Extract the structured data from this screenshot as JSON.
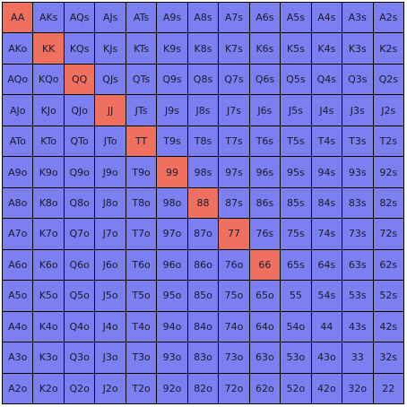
{
  "colors": {
    "default": "#7b7ff0",
    "highlight": "#f0705f"
  },
  "rows": [
    [
      "AA",
      "AKs",
      "AQs",
      "AJs",
      "ATs",
      "A9s",
      "A8s",
      "A7s",
      "A6s",
      "A5s",
      "A4s",
      "A3s",
      "A2s"
    ],
    [
      "AKo",
      "KK",
      "KQs",
      "KJs",
      "KTs",
      "K9s",
      "K8s",
      "K7s",
      "K6s",
      "K5s",
      "K4s",
      "K3s",
      "K2s"
    ],
    [
      "AQo",
      "KQo",
      "QQ",
      "QJs",
      "QTs",
      "Q9s",
      "Q8s",
      "Q7s",
      "Q6s",
      "Q5s",
      "Q4s",
      "Q3s",
      "Q2s"
    ],
    [
      "AJo",
      "KJo",
      "QJo",
      "JJ",
      "JTs",
      "J9s",
      "J8s",
      "J7s",
      "J6s",
      "J5s",
      "J4s",
      "J3s",
      "J2s"
    ],
    [
      "ATo",
      "KTo",
      "QTo",
      "JTo",
      "TT",
      "T9s",
      "T8s",
      "T7s",
      "T6s",
      "T5s",
      "T4s",
      "T3s",
      "T2s"
    ],
    [
      "A9o",
      "K9o",
      "Q9o",
      "J9o",
      "T9o",
      "99",
      "98s",
      "97s",
      "96s",
      "95s",
      "94s",
      "93s",
      "92s"
    ],
    [
      "A8o",
      "K8o",
      "Q8o",
      "J8o",
      "T8o",
      "98o",
      "88",
      "87s",
      "86s",
      "85s",
      "84s",
      "83s",
      "82s"
    ],
    [
      "A7o",
      "K7o",
      "Q7o",
      "J7o",
      "T7o",
      "97o",
      "87o",
      "77",
      "76s",
      "75s",
      "74s",
      "73s",
      "72s"
    ],
    [
      "A6o",
      "K6o",
      "Q6o",
      "J6o",
      "T6o",
      "96o",
      "86o",
      "76o",
      "66",
      "65s",
      "64s",
      "63s",
      "62s"
    ],
    [
      "A5o",
      "K5o",
      "Q5o",
      "J5o",
      "T5o",
      "95o",
      "85o",
      "75o",
      "65o",
      "55",
      "54s",
      "53s",
      "52s"
    ],
    [
      "A4o",
      "K4o",
      "Q4o",
      "J4o",
      "T4o",
      "94o",
      "84o",
      "74o",
      "64o",
      "54o",
      "44",
      "43s",
      "42s"
    ],
    [
      "A3o",
      "K3o",
      "Q3o",
      "J3o",
      "T3o",
      "93o",
      "83o",
      "73o",
      "63o",
      "53o",
      "43o",
      "33",
      "32s"
    ],
    [
      "A2o",
      "K2o",
      "Q2o",
      "J2o",
      "T2o",
      "92o",
      "82o",
      "72o",
      "62o",
      "52o",
      "42o",
      "32o",
      "22"
    ]
  ],
  "highlighted": [
    "AA",
    "KK",
    "QQ",
    "JJ",
    "TT",
    "99",
    "88",
    "77",
    "66"
  ]
}
